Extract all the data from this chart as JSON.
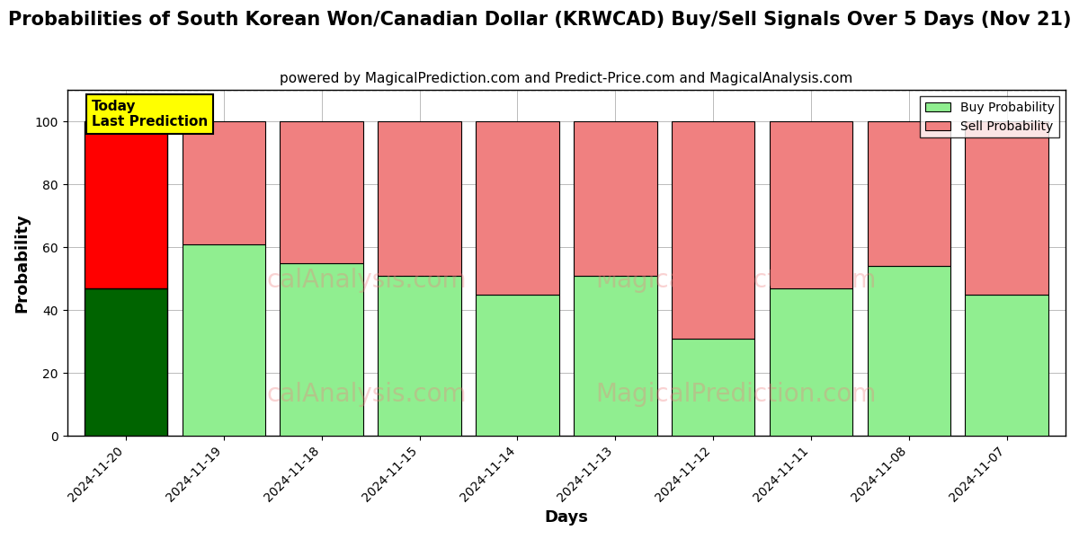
{
  "title": "Probabilities of South Korean Won/Canadian Dollar (KRWCAD) Buy/Sell Signals Over 5 Days (Nov 21)",
  "subtitle": "powered by MagicalPrediction.com and Predict-Price.com and MagicalAnalysis.com",
  "xlabel": "Days",
  "ylabel": "Probability",
  "dates": [
    "2024-11-20",
    "2024-11-19",
    "2024-11-18",
    "2024-11-15",
    "2024-11-14",
    "2024-11-13",
    "2024-11-12",
    "2024-11-11",
    "2024-11-08",
    "2024-11-07"
  ],
  "buy_values": [
    47,
    61,
    55,
    51,
    45,
    51,
    31,
    47,
    54,
    45
  ],
  "sell_values": [
    53,
    39,
    45,
    49,
    55,
    49,
    69,
    53,
    46,
    55
  ],
  "today_buy_color": "#006400",
  "today_sell_color": "#ff0000",
  "buy_color": "#90ee90",
  "sell_color": "#f08080",
  "today_index": 0,
  "ylim": [
    0,
    110
  ],
  "yticks": [
    0,
    20,
    40,
    60,
    80,
    100
  ],
  "dashed_line_y": 110,
  "background_color": "#ffffff",
  "grid_color": "#bbbbbb",
  "watermark_text1": "calAnalysis.com",
  "watermark_text2": "MagicalPrediction.com",
  "legend_buy_label": "Buy Probability",
  "legend_sell_label": "Sell Probability",
  "today_label_line1": "Today",
  "today_label_line2": "Last Prediction",
  "bar_width": 0.85,
  "title_fontsize": 15,
  "subtitle_fontsize": 11,
  "axis_label_fontsize": 13,
  "tick_fontsize": 10
}
